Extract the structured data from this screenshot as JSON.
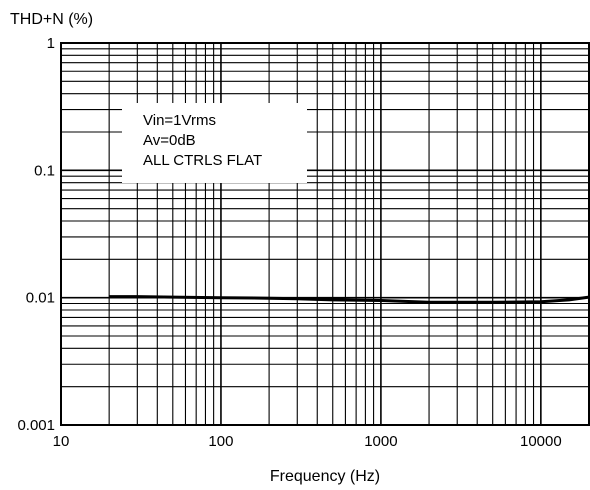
{
  "chart_data": {
    "type": "line",
    "title": "",
    "ylabel": "THD+N (%)",
    "xlabel": "Frequency (Hz)",
    "xscale": "log",
    "yscale": "log",
    "xlim": [
      10,
      20000
    ],
    "ylim": [
      0.001,
      1
    ],
    "grid": true,
    "x_ticks": [
      {
        "value": 10,
        "label": "10"
      },
      {
        "value": 100,
        "label": "100"
      },
      {
        "value": 1000,
        "label": "1000"
      },
      {
        "value": 10000,
        "label": "10000"
      }
    ],
    "y_ticks": [
      {
        "value": 1,
        "label": "1"
      },
      {
        "value": 0.1,
        "label": "0.1"
      },
      {
        "value": 0.01,
        "label": "0.01"
      },
      {
        "value": 0.001,
        "label": "0.001"
      }
    ],
    "annotation": [
      "Vin=1Vrms",
      "Av=0dB",
      "ALL CTRLS FLAT"
    ],
    "series": [
      {
        "color": "#000000",
        "x": [
          20,
          30,
          50,
          100,
          200,
          300,
          500,
          1000,
          2000,
          3000,
          5000,
          10000,
          15000,
          20000
        ],
        "y": [
          0.0102,
          0.0102,
          0.0101,
          0.01,
          0.0099,
          0.0098,
          0.0096,
          0.0095,
          0.0092,
          0.0092,
          0.0092,
          0.0093,
          0.0096,
          0.0101
        ]
      }
    ]
  }
}
